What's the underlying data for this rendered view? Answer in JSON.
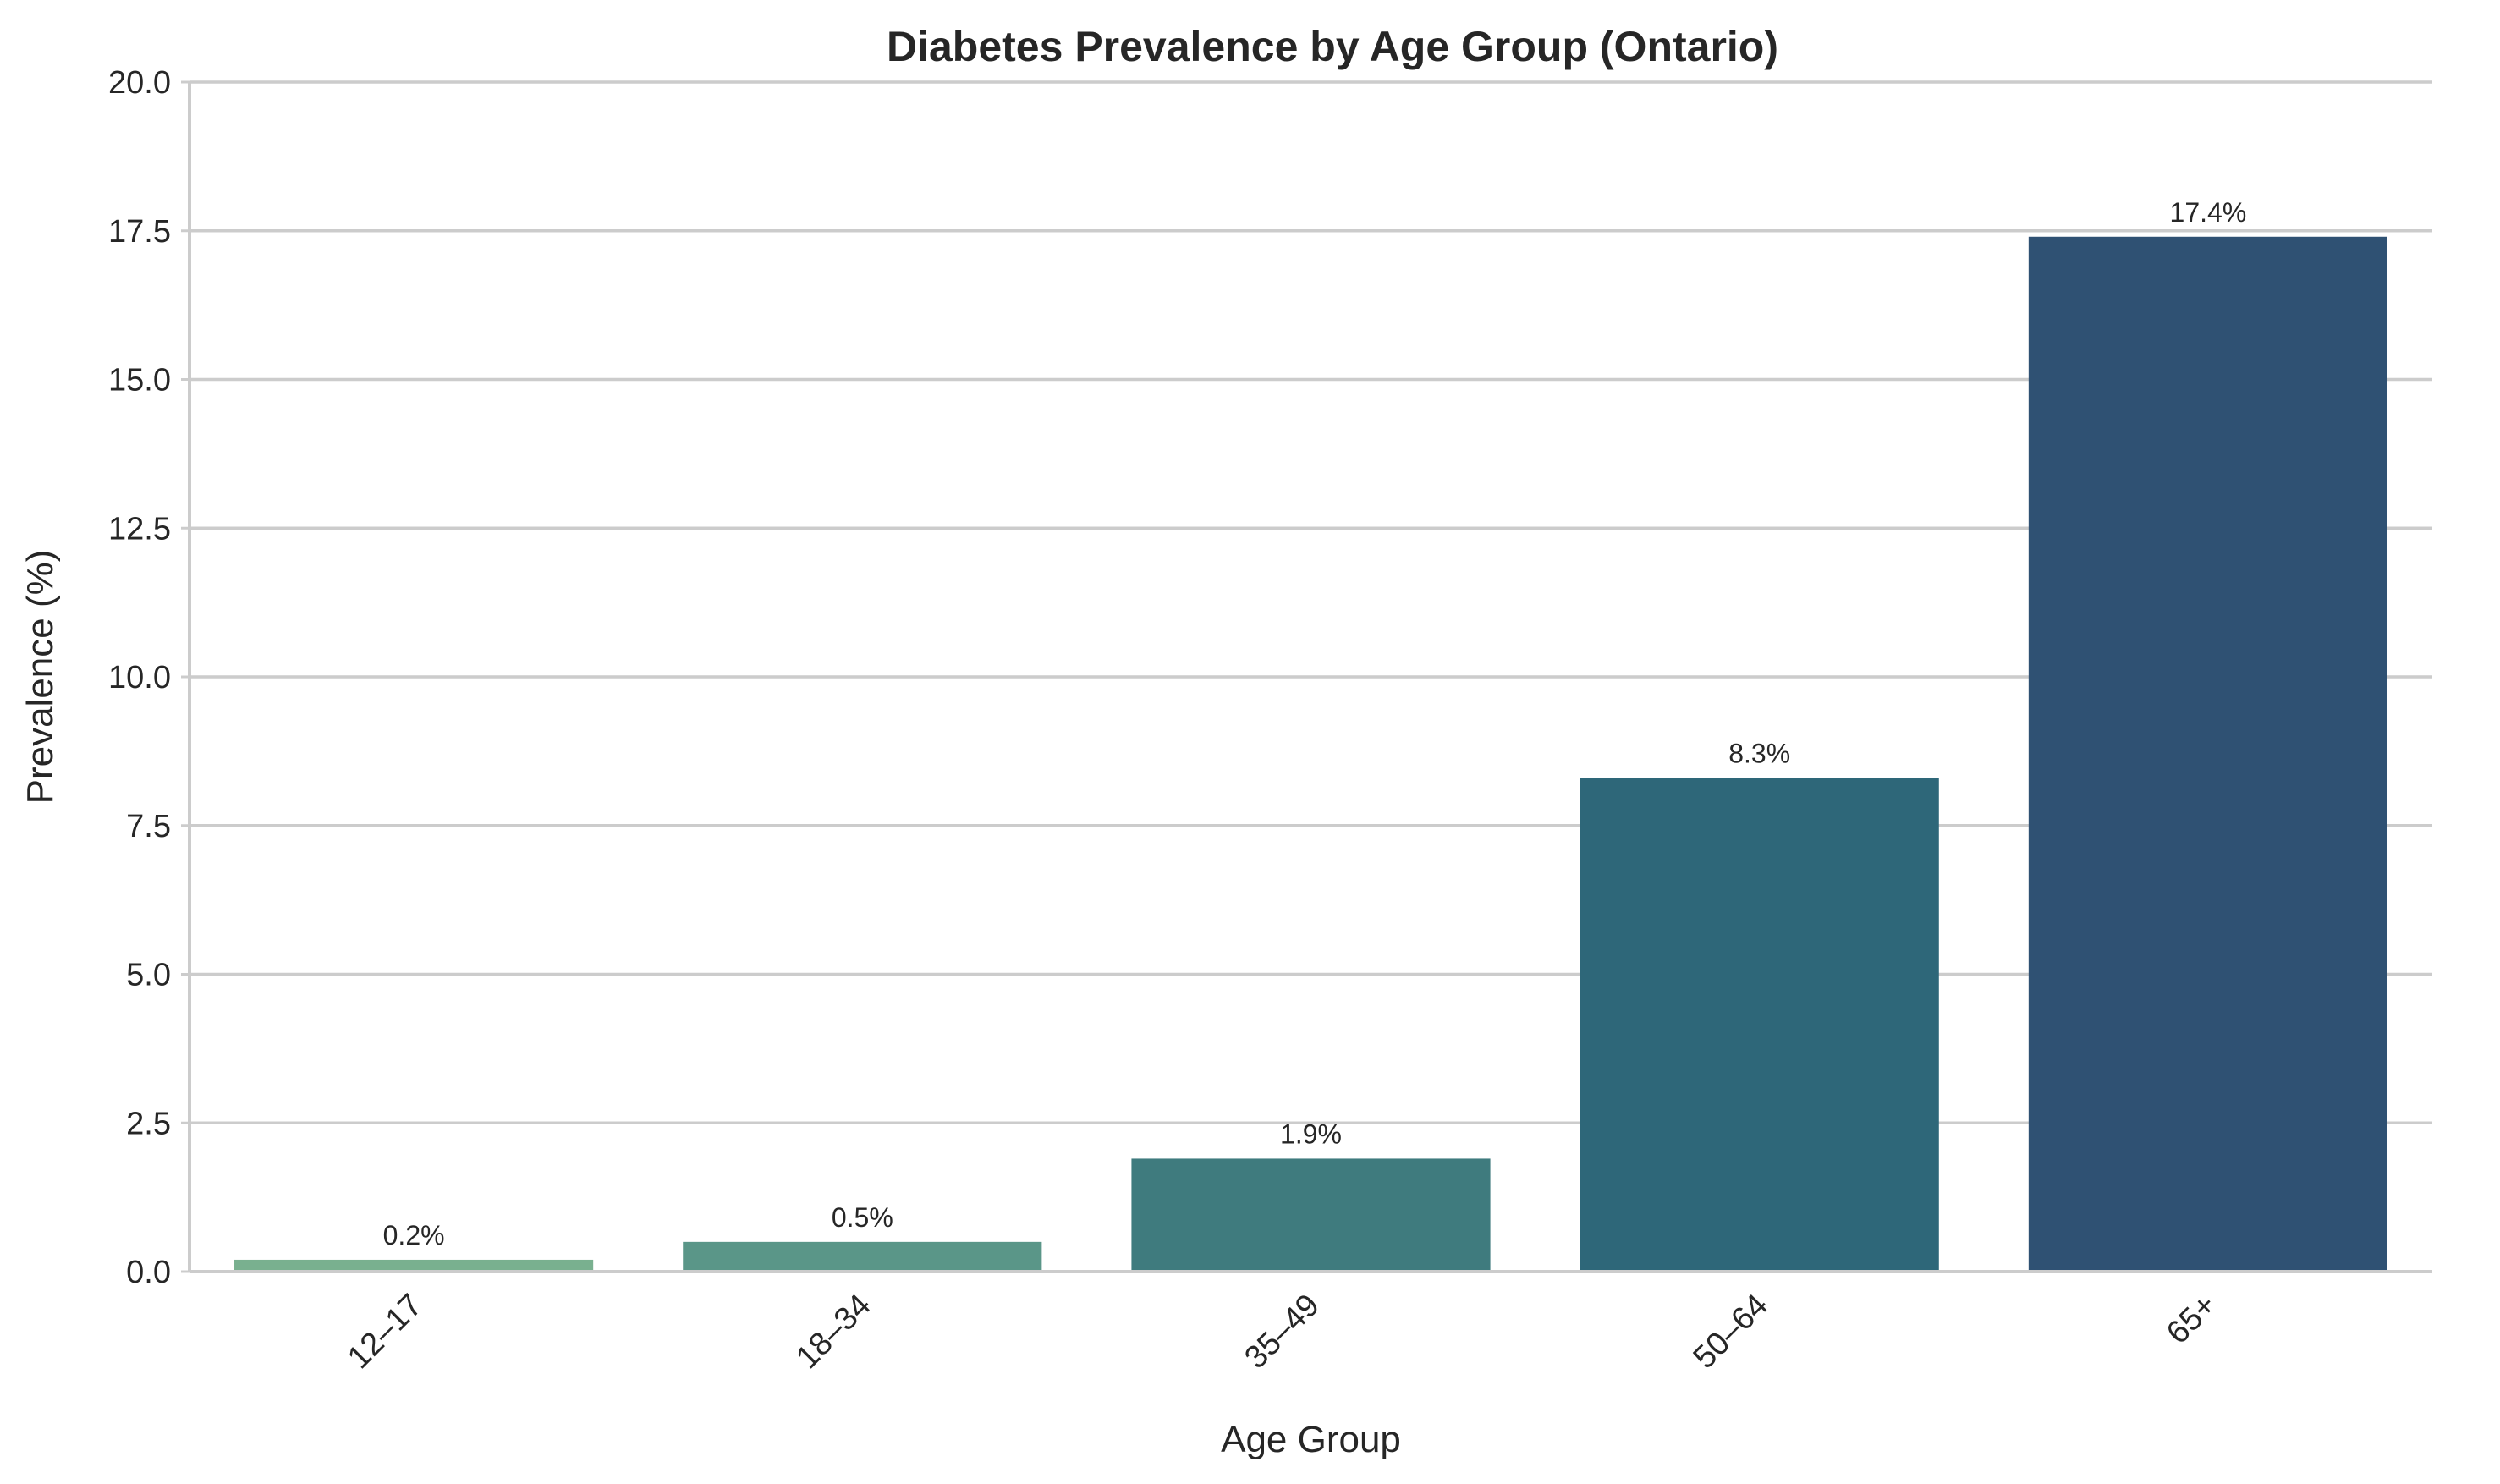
{
  "chart_data": {
    "type": "bar",
    "title": "Diabetes Prevalence by Age Group (Ontario)",
    "xlabel": "Age Group",
    "ylabel": "Prevalence (%)",
    "categories": [
      "12–17",
      "18–34",
      "35–49",
      "50–64",
      "65+"
    ],
    "values": [
      0.2,
      0.5,
      1.9,
      8.3,
      17.4
    ],
    "data_labels": [
      "0.2%",
      "0.5%",
      "1.9%",
      "8.3%",
      "17.4%"
    ],
    "ylim": [
      0,
      20
    ],
    "yticks": [
      0.0,
      2.5,
      5.0,
      7.5,
      10.0,
      12.5,
      15.0,
      17.5,
      20.0
    ],
    "ytick_labels": [
      "0.0",
      "2.5",
      "5.0",
      "7.5",
      "10.0",
      "12.5",
      "15.0",
      "17.5",
      "20.0"
    ],
    "bar_colors": [
      "#79b08f",
      "#5a9688",
      "#3f7b7e",
      "#2e6779",
      "#2f5173"
    ],
    "grid": "horizontal",
    "xtick_rotation_deg": 45,
    "legend": "none"
  }
}
